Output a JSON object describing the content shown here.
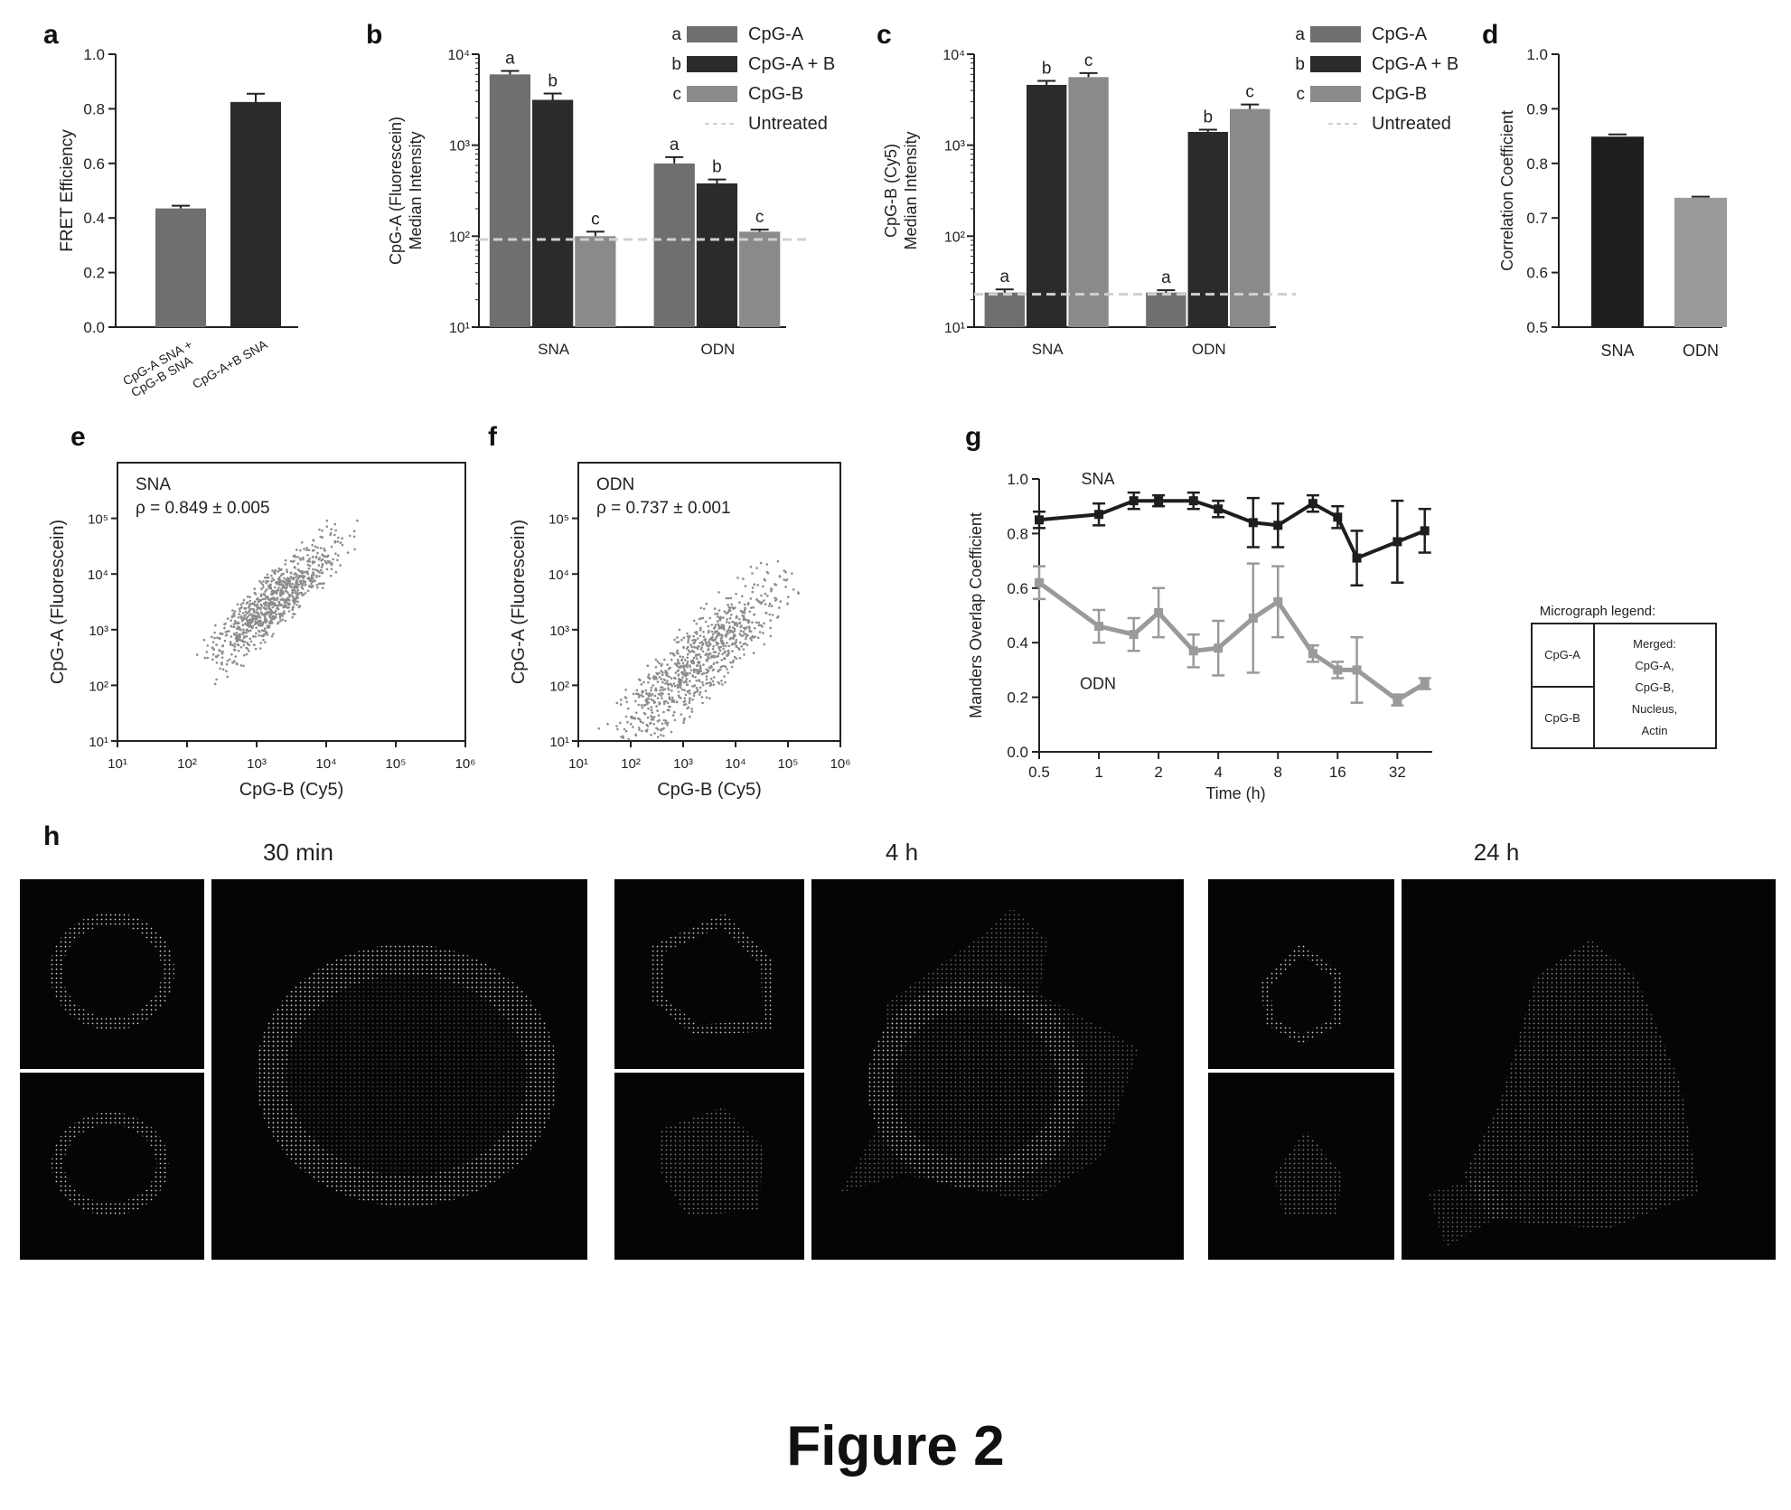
{
  "figure_title": "Figure 2",
  "panel_letters": [
    "a",
    "b",
    "c",
    "d",
    "e",
    "f",
    "g",
    "h"
  ],
  "colors": {
    "cpgA": "#6f6f6f",
    "cpgAB": "#2b2b2b",
    "cpgB": "#8a8a8a",
    "odn": "#9a9a9a",
    "sna": "#1e1e1e",
    "dashed": "#d0d0d0"
  },
  "chart_data": [
    {
      "id": "a",
      "type": "bar",
      "categories": [
        "CpG-A SNA + CpG-B SNA",
        "CpG-A+B SNA"
      ],
      "category_lines": [
        [
          "CpG-A SNA +",
          "CpG-B SNA"
        ],
        [
          "CpG-A+B SNA"
        ]
      ],
      "values": [
        0.435,
        0.825
      ],
      "errors": [
        0.01,
        0.03
      ],
      "ylabel": "FRET Efficiency",
      "ylim": [
        0,
        1.0
      ],
      "yticks": [
        "0.0",
        "0.2",
        "0.4",
        "0.6",
        "0.8",
        "1.0"
      ]
    },
    {
      "id": "b",
      "type": "bar",
      "yscale": "log",
      "ylabel_lines": [
        "CpG-A (Fluorescein)",
        "Median Intensity"
      ],
      "ylim": [
        10,
        10000
      ],
      "ytick_labels": [
        "10¹",
        "10²",
        "10³",
        "10⁴"
      ],
      "groups": [
        "SNA",
        "ODN"
      ],
      "series": [
        {
          "name": "CpG-A",
          "letter": "a",
          "values": [
            6000,
            630
          ],
          "errors": [
            550,
            110
          ]
        },
        {
          "name": "CpG-A + B",
          "letter": "b",
          "values": [
            3150,
            380
          ],
          "errors": [
            550,
            40
          ]
        },
        {
          "name": "CpG-B",
          "letter": "c",
          "values": [
            100,
            112
          ],
          "errors": [
            12,
            6
          ]
        }
      ],
      "baseline": {
        "name": "Untreated",
        "value": 92
      },
      "legend": "top-right"
    },
    {
      "id": "c",
      "type": "bar",
      "yscale": "log",
      "ylabel_lines": [
        "CpG-B (Cy5)",
        "Median Intensity"
      ],
      "ylim": [
        10,
        10000
      ],
      "ytick_labels": [
        "10¹",
        "10²",
        "10³",
        "10⁴"
      ],
      "groups": [
        "SNA",
        "ODN"
      ],
      "series": [
        {
          "name": "CpG-A",
          "letter": "a",
          "values": [
            24,
            24
          ],
          "errors": [
            2,
            1.5
          ]
        },
        {
          "name": "CpG-A + B",
          "letter": "b",
          "values": [
            4600,
            1400
          ],
          "errors": [
            500,
            80
          ]
        },
        {
          "name": "CpG-B",
          "letter": "c",
          "values": [
            5600,
            2500
          ],
          "errors": [
            600,
            300
          ]
        }
      ],
      "baseline": {
        "name": "Untreated",
        "value": 23
      },
      "legend": "top-right"
    },
    {
      "id": "d",
      "type": "bar",
      "categories": [
        "SNA",
        "ODN"
      ],
      "values": [
        0.849,
        0.737
      ],
      "errors": [
        0.004,
        0.002
      ],
      "ylabel": "Correlation Coefficient",
      "ylim": [
        0.5,
        1.0
      ],
      "yticks": [
        "0.5",
        "0.6",
        "0.7",
        "0.8",
        "0.9",
        "1.0"
      ]
    },
    {
      "id": "e",
      "type": "scatter",
      "annotation_lines": [
        "SNA",
        "ρ = 0.849 ± 0.005"
      ],
      "xlabel": "CpG-B (Cy5)",
      "ylabel": "CpG-A (Fluorescein)",
      "xscale": "log",
      "yscale": "log",
      "xlim": [
        10,
        1000000
      ],
      "ylim": [
        10,
        1000000
      ],
      "xtick_labels": [
        "10¹",
        "10²",
        "10³",
        "10⁴",
        "10⁵",
        "10⁶"
      ],
      "ytick_labels": [
        "10¹",
        "10²",
        "10³",
        "10⁴",
        "10⁵"
      ],
      "correlation": 0.849
    },
    {
      "id": "f",
      "type": "scatter",
      "annotation_lines": [
        "ODN",
        "ρ = 0.737 ± 0.001"
      ],
      "xlabel": "CpG-B (Cy5)",
      "ylabel": "CpG-A (Fluorescein)",
      "xscale": "log",
      "yscale": "log",
      "xlim": [
        10,
        1000000
      ],
      "ylim": [
        10,
        1000000
      ],
      "xtick_labels": [
        "10¹",
        "10²",
        "10³",
        "10⁴",
        "10⁵",
        "10⁶"
      ],
      "ytick_labels": [
        "10¹",
        "10²",
        "10³",
        "10⁴",
        "10⁵"
      ],
      "correlation": 0.737
    },
    {
      "id": "g",
      "type": "line",
      "xscale": "log2",
      "xlabel": "Time (h)",
      "ylabel": "Manders Overlap Coefficient",
      "xlim": [
        0.5,
        48
      ],
      "ylim": [
        0,
        1.0
      ],
      "xticks": [
        0.5,
        1,
        2,
        4,
        8,
        16,
        32
      ],
      "xtick_labels": [
        "0.5",
        "1",
        "2",
        "4",
        "8",
        "16",
        "32"
      ],
      "ytick_labels": [
        "0.0",
        "0.2",
        "0.4",
        "0.6",
        "0.8",
        "1.0"
      ],
      "x": [
        0.5,
        1,
        1.5,
        2,
        3,
        4,
        6,
        8,
        12,
        16,
        20,
        32,
        44
      ],
      "series": [
        {
          "name": "SNA",
          "values": [
            0.85,
            0.87,
            0.92,
            0.92,
            0.92,
            0.89,
            0.84,
            0.83,
            0.91,
            0.86,
            0.71,
            0.77,
            0.81
          ],
          "errors": [
            0.03,
            0.04,
            0.03,
            0.02,
            0.03,
            0.03,
            0.09,
            0.08,
            0.03,
            0.04,
            0.1,
            0.15,
            0.08
          ]
        },
        {
          "name": "ODN",
          "values": [
            0.62,
            0.46,
            0.43,
            0.51,
            0.37,
            0.38,
            0.49,
            0.55,
            0.36,
            0.3,
            0.3,
            0.19,
            0.25
          ],
          "errors": [
            0.06,
            0.06,
            0.06,
            0.09,
            0.06,
            0.1,
            0.2,
            0.13,
            0.03,
            0.03,
            0.12,
            0.02,
            0.02
          ]
        }
      ]
    }
  ],
  "micrograph_legend": {
    "title": "Micrograph legend:",
    "left": [
      "CpG-A",
      "CpG-B"
    ],
    "merged_lines": [
      "Merged:",
      "CpG-A,",
      "CpG-B,",
      "Nucleus,",
      "Actin"
    ]
  },
  "micrographs": {
    "timepoints": [
      "30 min",
      "4 h",
      "24 h"
    ]
  }
}
